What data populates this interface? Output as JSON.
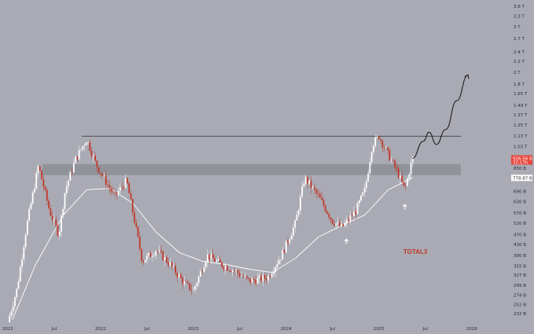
{
  "chart_data": {
    "type": "candlestick",
    "symbol_label": "TOTAL3",
    "y_scale": "log",
    "ylim_billions": [
      215,
      3700
    ],
    "y_tick_labels": [
      {
        "label": "3.6 T",
        "value": 3600
      },
      {
        "label": "3.3 T",
        "value": 3300
      },
      {
        "label": "3 T",
        "value": 3000
      },
      {
        "label": "2.7 T",
        "value": 2700
      },
      {
        "label": "2.4 T",
        "value": 2400
      },
      {
        "label": "2.2 T",
        "value": 2200
      },
      {
        "label": "2 T",
        "value": 2000
      },
      {
        "label": "1.8 T",
        "value": 1800
      },
      {
        "label": "1.65 T",
        "value": 1650
      },
      {
        "label": "1.49 T",
        "value": 1490
      },
      {
        "label": "1.37 T",
        "value": 1370
      },
      {
        "label": "1.25 T",
        "value": 1250
      },
      {
        "label": "1.13 T",
        "value": 1130
      },
      {
        "label": "1.03 T",
        "value": 1030
      },
      {
        "label": "850 B",
        "value": 850
      },
      {
        "label": "690 B",
        "value": 690
      },
      {
        "label": "630 B",
        "value": 630
      },
      {
        "label": "570 B",
        "value": 570
      },
      {
        "label": "520 B",
        "value": 520
      },
      {
        "label": "470 B",
        "value": 470
      },
      {
        "label": "430 B",
        "value": 430
      },
      {
        "label": "390 B",
        "value": 390
      },
      {
        "label": "355 B",
        "value": 355
      },
      {
        "label": "327 B",
        "value": 327
      },
      {
        "label": "299 B",
        "value": 299
      },
      {
        "label": "274 B",
        "value": 274
      },
      {
        "label": "252 B",
        "value": 252
      },
      {
        "label": "232 B",
        "value": 232
      }
    ],
    "x_tick_labels": [
      {
        "label": "2021",
        "t": 2021.0
      },
      {
        "label": "Jul",
        "t": 2021.5
      },
      {
        "label": "2022",
        "t": 2022.0
      },
      {
        "label": "Jul",
        "t": 2022.5
      },
      {
        "label": "2023",
        "t": 2023.0
      },
      {
        "label": "Jul",
        "t": 2023.5
      },
      {
        "label": "2024",
        "t": 2024.0
      },
      {
        "label": "Jul",
        "t": 2024.5
      },
      {
        "label": "2025",
        "t": 2025.0
      },
      {
        "label": "Jul",
        "t": 2025.5
      },
      {
        "label": "2026",
        "t": 2026.0
      }
    ],
    "xlim": [
      2020.95,
      2026.35
    ],
    "price_tags": [
      {
        "label": "926.56 B",
        "sub": "32:17h",
        "value": 926.56,
        "color": "#e8453c",
        "text_color": "#ffffff"
      },
      {
        "label": "778.87 B",
        "value": 778.87,
        "color": "#ffffff",
        "text_color": "#2b2d36"
      }
    ],
    "resistance_line_billions": 1130,
    "resistance_line_start": 2021.8,
    "support_zone_billions": [
      798,
      880
    ],
    "moving_average_color": "#ffffff",
    "up_color": "#ffffff",
    "down_color": "#c0392b",
    "key_points": [
      {
        "t": 2021.0,
        "v": 215
      },
      {
        "t": 2021.1,
        "v": 290
      },
      {
        "t": 2021.2,
        "v": 500
      },
      {
        "t": 2021.33,
        "v": 870
      },
      {
        "t": 2021.45,
        "v": 580
      },
      {
        "t": 2021.55,
        "v": 470
      },
      {
        "t": 2021.62,
        "v": 700
      },
      {
        "t": 2021.73,
        "v": 920
      },
      {
        "t": 2021.85,
        "v": 1100
      },
      {
        "t": 2021.95,
        "v": 880
      },
      {
        "t": 2022.05,
        "v": 760
      },
      {
        "t": 2022.15,
        "v": 660
      },
      {
        "t": 2022.28,
        "v": 760
      },
      {
        "t": 2022.38,
        "v": 500
      },
      {
        "t": 2022.45,
        "v": 370
      },
      {
        "t": 2022.6,
        "v": 410
      },
      {
        "t": 2022.75,
        "v": 360
      },
      {
        "t": 2022.9,
        "v": 305
      },
      {
        "t": 2023.0,
        "v": 285
      },
      {
        "t": 2023.15,
        "v": 390
      },
      {
        "t": 2023.3,
        "v": 360
      },
      {
        "t": 2023.45,
        "v": 340
      },
      {
        "t": 2023.6,
        "v": 310
      },
      {
        "t": 2023.8,
        "v": 320
      },
      {
        "t": 2023.95,
        "v": 390
      },
      {
        "t": 2024.1,
        "v": 520
      },
      {
        "t": 2024.2,
        "v": 780
      },
      {
        "t": 2024.35,
        "v": 660
      },
      {
        "t": 2024.5,
        "v": 530
      },
      {
        "t": 2024.6,
        "v": 500
      },
      {
        "t": 2024.75,
        "v": 580
      },
      {
        "t": 2024.85,
        "v": 700
      },
      {
        "t": 2024.93,
        "v": 1050
      },
      {
        "t": 2025.0,
        "v": 1130
      },
      {
        "t": 2025.1,
        "v": 960
      },
      {
        "t": 2025.2,
        "v": 820
      },
      {
        "t": 2025.28,
        "v": 700
      },
      {
        "t": 2025.36,
        "v": 926
      }
    ],
    "moving_average_points": [
      {
        "t": 2021.05,
        "v": 220
      },
      {
        "t": 2021.3,
        "v": 360
      },
      {
        "t": 2021.6,
        "v": 560
      },
      {
        "t": 2021.85,
        "v": 700
      },
      {
        "t": 2022.1,
        "v": 710
      },
      {
        "t": 2022.35,
        "v": 620
      },
      {
        "t": 2022.6,
        "v": 480
      },
      {
        "t": 2022.85,
        "v": 400
      },
      {
        "t": 2023.1,
        "v": 370
      },
      {
        "t": 2023.35,
        "v": 360
      },
      {
        "t": 2023.6,
        "v": 345
      },
      {
        "t": 2023.85,
        "v": 335
      },
      {
        "t": 2024.1,
        "v": 380
      },
      {
        "t": 2024.35,
        "v": 460
      },
      {
        "t": 2024.6,
        "v": 510
      },
      {
        "t": 2024.85,
        "v": 560
      },
      {
        "t": 2025.1,
        "v": 700
      },
      {
        "t": 2025.36,
        "v": 779
      }
    ],
    "projection_points": [
      {
        "t": 2025.36,
        "v": 926
      },
      {
        "t": 2025.48,
        "v": 1080
      },
      {
        "t": 2025.54,
        "v": 1170
      },
      {
        "t": 2025.62,
        "v": 1050
      },
      {
        "t": 2025.72,
        "v": 1200
      },
      {
        "t": 2025.84,
        "v": 1550
      },
      {
        "t": 2025.96,
        "v": 1950
      }
    ],
    "bounce_arrows": [
      {
        "t": 2024.65,
        "v": 470
      },
      {
        "t": 2025.28,
        "v": 640
      }
    ],
    "grid": false,
    "legend": "none"
  }
}
